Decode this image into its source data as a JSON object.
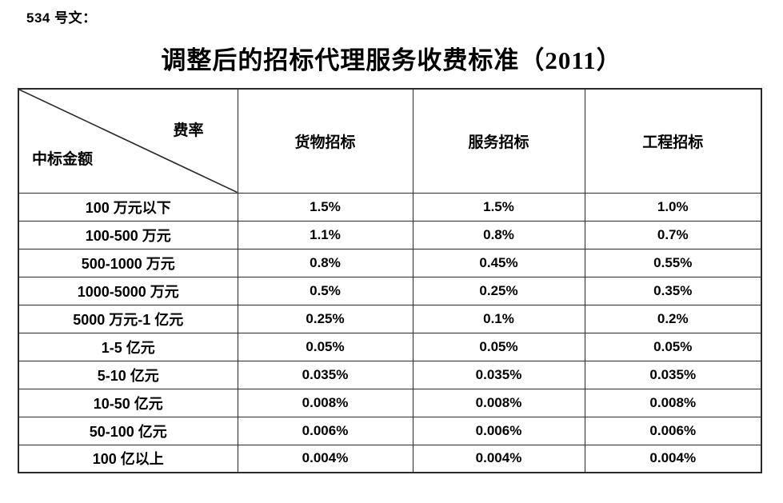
{
  "page": {
    "doc_label": "534 号文：",
    "title": "调整后的招标代理服务收费标准（2011）"
  },
  "table": {
    "corner": {
      "top_right_label": "费率",
      "bottom_left_label": "中标金额"
    },
    "columns": [
      "货物招标",
      "服务招标",
      "工程招标"
    ],
    "rows": [
      {
        "amount": "100 万元以下",
        "rates": [
          "1.5%",
          "1.5%",
          "1.0%"
        ]
      },
      {
        "amount": "100-500 万元",
        "rates": [
          "1.1%",
          "0.8%",
          "0.7%"
        ]
      },
      {
        "amount": "500-1000 万元",
        "rates": [
          "0.8%",
          "0.45%",
          "0.55%"
        ]
      },
      {
        "amount": "1000-5000 万元",
        "rates": [
          "0.5%",
          "0.25%",
          "0.35%"
        ]
      },
      {
        "amount": "5000 万元-1 亿元",
        "rates": [
          "0.25%",
          "0.1%",
          "0.2%"
        ]
      },
      {
        "amount": "1-5 亿元",
        "rates": [
          "0.05%",
          "0.05%",
          "0.05%"
        ]
      },
      {
        "amount": "5-10 亿元",
        "rates": [
          "0.035%",
          "0.035%",
          "0.035%"
        ]
      },
      {
        "amount": "10-50 亿元",
        "rates": [
          "0.008%",
          "0.008%",
          "0.008%"
        ]
      },
      {
        "amount": "50-100 亿元",
        "rates": [
          "0.006%",
          "0.006%",
          "0.006%"
        ]
      },
      {
        "amount": "100 亿以上",
        "rates": [
          "0.004%",
          "0.004%",
          "0.004%"
        ]
      }
    ]
  },
  "colors": {
    "text": "#000000",
    "border": "#2b2b2b",
    "background": "#ffffff"
  }
}
